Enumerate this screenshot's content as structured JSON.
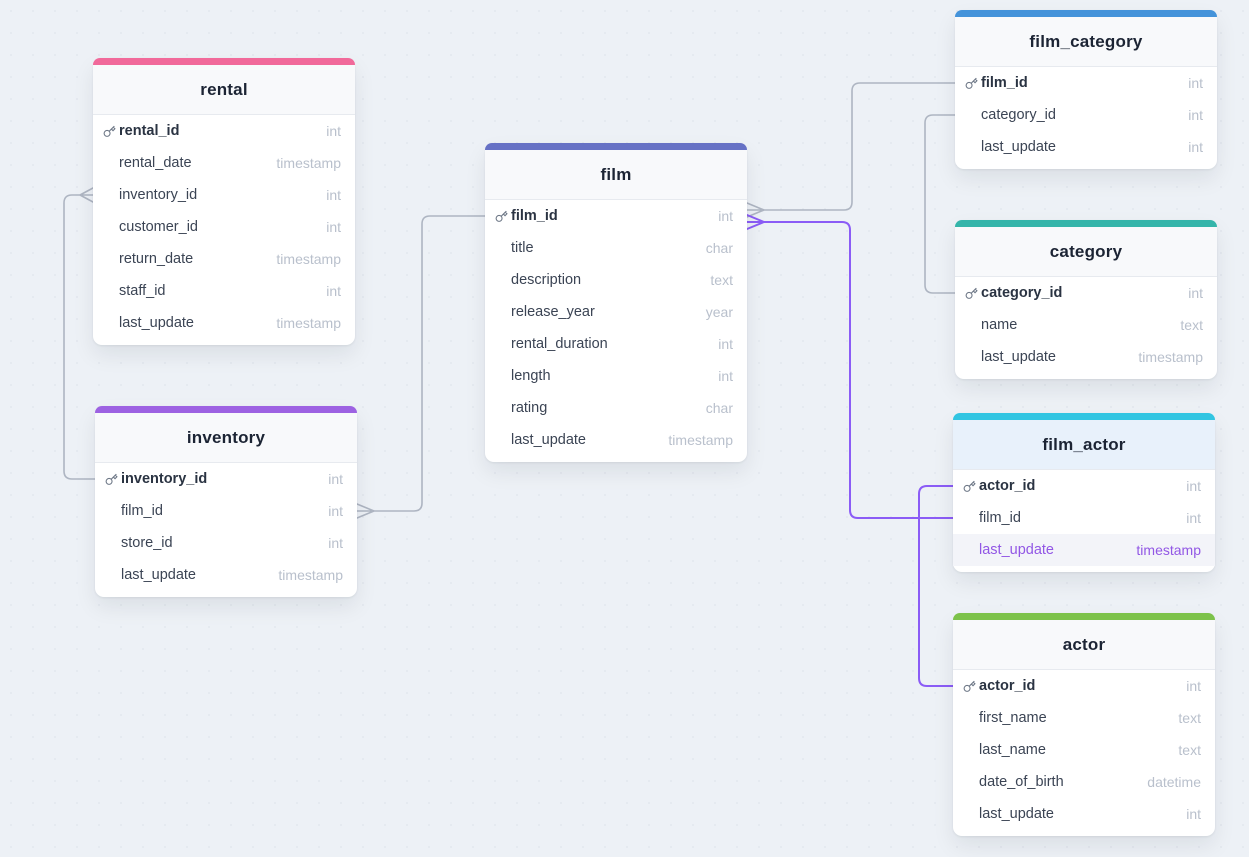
{
  "diagram": {
    "kind": "entity-relationship-diagram",
    "canvas_background": "#edf1f6",
    "line_color": "#aeb5c2",
    "highlight_line_color": "#8b5cf6"
  },
  "tables": [
    {
      "name": "rental",
      "accent": "#f1699a",
      "header_highlight": false,
      "fields": [
        {
          "name": "rental_id",
          "type": "int",
          "pk": true,
          "highlighted": false
        },
        {
          "name": "rental_date",
          "type": "timestamp",
          "pk": false,
          "highlighted": false
        },
        {
          "name": "inventory_id",
          "type": "int",
          "pk": false,
          "highlighted": false
        },
        {
          "name": "customer_id",
          "type": "int",
          "pk": false,
          "highlighted": false
        },
        {
          "name": "return_date",
          "type": "timestamp",
          "pk": false,
          "highlighted": false
        },
        {
          "name": "staff_id",
          "type": "int",
          "pk": false,
          "highlighted": false
        },
        {
          "name": "last_update",
          "type": "timestamp",
          "pk": false,
          "highlighted": false
        }
      ]
    },
    {
      "name": "inventory",
      "accent": "#9d62e2",
      "header_highlight": false,
      "fields": [
        {
          "name": "inventory_id",
          "type": "int",
          "pk": true,
          "highlighted": false
        },
        {
          "name": "film_id",
          "type": "int",
          "pk": false,
          "highlighted": false
        },
        {
          "name": "store_id",
          "type": "int",
          "pk": false,
          "highlighted": false
        },
        {
          "name": "last_update",
          "type": "timestamp",
          "pk": false,
          "highlighted": false
        }
      ]
    },
    {
      "name": "film",
      "accent": "#6671c5",
      "header_highlight": false,
      "fields": [
        {
          "name": "film_id",
          "type": "int",
          "pk": true,
          "highlighted": false
        },
        {
          "name": "title",
          "type": "char",
          "pk": false,
          "highlighted": false
        },
        {
          "name": "description",
          "type": "text",
          "pk": false,
          "highlighted": false
        },
        {
          "name": "release_year",
          "type": "year",
          "pk": false,
          "highlighted": false
        },
        {
          "name": "rental_duration",
          "type": "int",
          "pk": false,
          "highlighted": false
        },
        {
          "name": "length",
          "type": "int",
          "pk": false,
          "highlighted": false
        },
        {
          "name": "rating",
          "type": "char",
          "pk": false,
          "highlighted": false
        },
        {
          "name": "last_update",
          "type": "timestamp",
          "pk": false,
          "highlighted": false
        }
      ]
    },
    {
      "name": "film_category",
      "accent": "#4493da",
      "header_highlight": false,
      "fields": [
        {
          "name": "film_id",
          "type": "int",
          "pk": true,
          "highlighted": false
        },
        {
          "name": "category_id",
          "type": "int",
          "pk": false,
          "highlighted": false
        },
        {
          "name": "last_update",
          "type": "int",
          "pk": false,
          "highlighted": false
        }
      ]
    },
    {
      "name": "category",
      "accent": "#35b5aa",
      "header_highlight": false,
      "fields": [
        {
          "name": "category_id",
          "type": "int",
          "pk": true,
          "highlighted": false
        },
        {
          "name": "name",
          "type": "text",
          "pk": false,
          "highlighted": false
        },
        {
          "name": "last_update",
          "type": "timestamp",
          "pk": false,
          "highlighted": false
        }
      ]
    },
    {
      "name": "film_actor",
      "accent": "#31c5e2",
      "header_highlight": true,
      "fields": [
        {
          "name": "actor_id",
          "type": "int",
          "pk": true,
          "highlighted": false
        },
        {
          "name": "film_id",
          "type": "int",
          "pk": false,
          "highlighted": false
        },
        {
          "name": "last_update",
          "type": "timestamp",
          "pk": false,
          "highlighted": true
        }
      ]
    },
    {
      "name": "actor",
      "accent": "#7cc24a",
      "header_highlight": false,
      "fields": [
        {
          "name": "actor_id",
          "type": "int",
          "pk": true,
          "highlighted": false
        },
        {
          "name": "first_name",
          "type": "text",
          "pk": false,
          "highlighted": false
        },
        {
          "name": "last_name",
          "type": "text",
          "pk": false,
          "highlighted": false
        },
        {
          "name": "date_of_birth",
          "type": "datetime",
          "pk": false,
          "highlighted": false
        },
        {
          "name": "last_update",
          "type": "int",
          "pk": false,
          "highlighted": false
        }
      ]
    }
  ],
  "relationships": [
    {
      "from": "rental.inventory_id",
      "to": "inventory.inventory_id",
      "many_end": "rental",
      "highlighted": false
    },
    {
      "from": "inventory.film_id",
      "to": "film.film_id",
      "many_end": "inventory",
      "highlighted": false
    },
    {
      "from": "film.film_id",
      "to": "film_category.film_id",
      "many_end": "film",
      "highlighted": false
    },
    {
      "from": "film_category.category_id",
      "to": "category.category_id",
      "many_end": "none",
      "highlighted": false
    },
    {
      "from": "film.film_id",
      "to": "film_actor.film_id",
      "many_end": "film",
      "highlighted": true
    },
    {
      "from": "film_actor.actor_id",
      "to": "actor.actor_id",
      "many_end": "none",
      "highlighted": true
    }
  ]
}
